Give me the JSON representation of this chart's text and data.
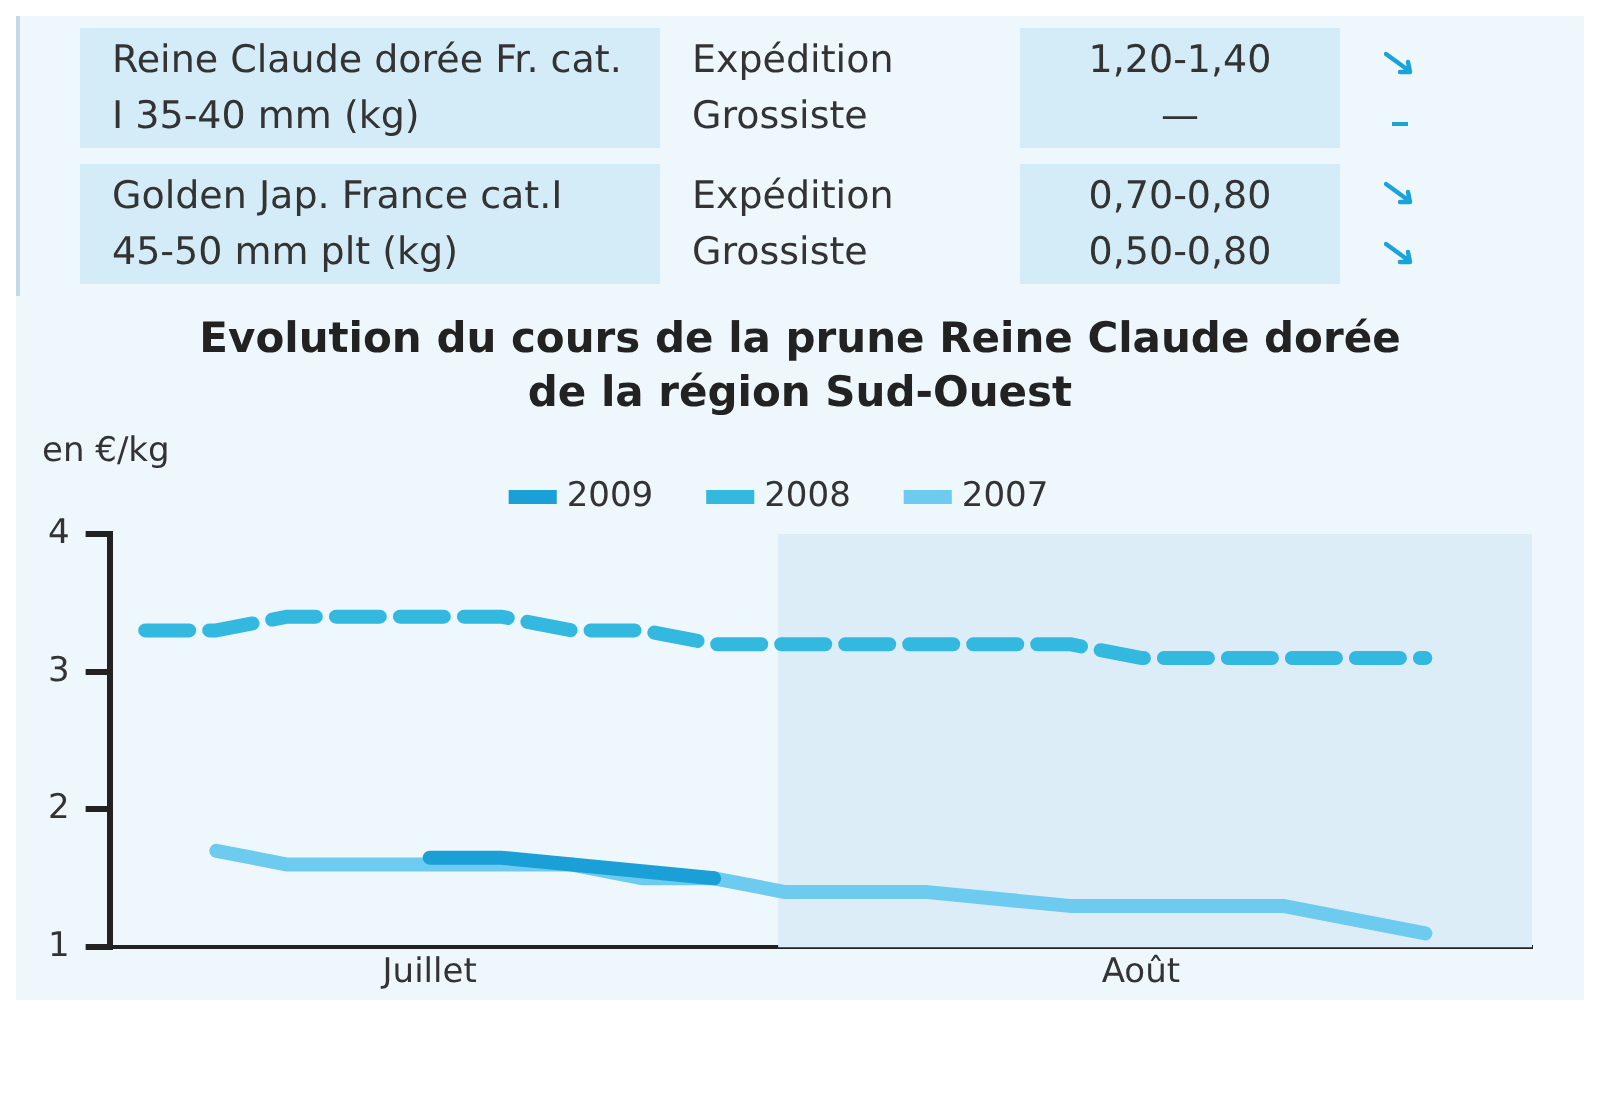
{
  "chart_data": {
    "type": "line",
    "title": "Evolution du cours de la prune Reine Claude dorée\nde la région Sud-Ouest",
    "ylabel": "en €/kg",
    "annotations": [
      "Reine Claude dorée Fr. cat. I 35-40 mm (kg)",
      "Expédition",
      "1,20-1,40",
      "Grossiste",
      "—",
      "Golden Jap. France cat.I 45-50 mm plt (kg)",
      "Expédition",
      "0,70-0,80",
      "Grossiste",
      "0,50-0,80"
    ],
    "categories": [
      null,
      null,
      null,
      null,
      "Juillet",
      null,
      null,
      null,
      null,
      null,
      null,
      null,
      null,
      null,
      "Août",
      null,
      null,
      null,
      null,
      null
    ],
    "ylim": [
      1,
      4
    ],
    "yticks": [
      1,
      2,
      3,
      4
    ],
    "grid": false,
    "legend": "top",
    "marker": "none",
    "series": [
      {
        "name": "2009",
        "color": "#1a9fd6",
        "line_style": "solid",
        "values": [
          null,
          null,
          null,
          null,
          1.65,
          1.65,
          1.6,
          null,
          1.5,
          null,
          null,
          null,
          null,
          null,
          null,
          null,
          null,
          null,
          null,
          null
        ]
      },
      {
        "name": "2008",
        "color": "#33b8e0",
        "line_style": "dashed",
        "values": [
          3.3,
          3.3,
          3.4,
          3.4,
          3.4,
          3.4,
          3.3,
          3.3,
          3.2,
          3.2,
          3.2,
          3.2,
          3.2,
          3.2,
          3.1,
          3.1,
          3.1,
          3.1,
          3.1,
          null
        ]
      },
      {
        "name": "2007",
        "color": "#6ccbef",
        "line_style": "solid",
        "values": [
          null,
          1.7,
          1.6,
          null,
          null,
          null,
          1.6,
          1.5,
          1.5,
          1.4,
          null,
          1.4,
          null,
          1.3,
          null,
          null,
          1.3,
          null,
          1.1,
          null
        ]
      }
    ]
  }
}
